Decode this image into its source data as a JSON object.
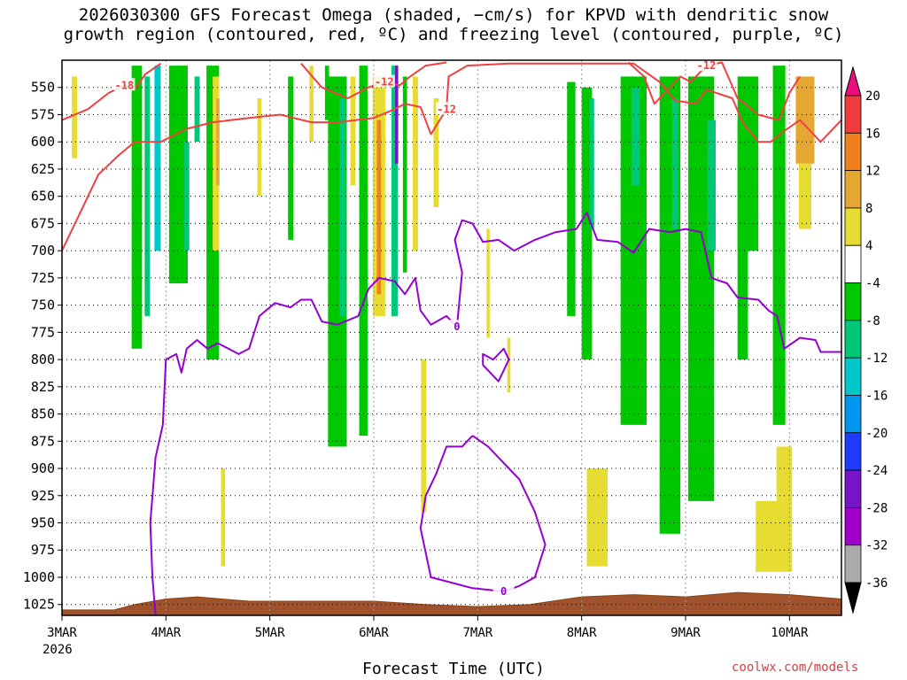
{
  "title_line1": "2026030300 GFS Forecast Omega (shaded, −cm/s) for KPVD with dendritic snow",
  "title_line2": "growth region (contoured, red, ºC) and freezing level (contoured, purple, ºC)",
  "credit": "coolwx.com/models",
  "chart_data": {
    "type": "heatmap",
    "title": "2026030300 GFS Forecast Omega (shaded, −cm/s) for KPVD with dendritic snow growth region (contoured, red, ºC) and freezing level (contoured, purple, ºC)",
    "xlabel": "Forecast Time (UTC)",
    "ylabel": "",
    "x_range_days": [
      0,
      7.5
    ],
    "y_range_hpa": [
      1035,
      525
    ],
    "y_inverted": true,
    "y_ticks": [
      550,
      575,
      600,
      625,
      650,
      675,
      700,
      725,
      750,
      775,
      800,
      825,
      850,
      875,
      900,
      925,
      950,
      975,
      1000,
      1025
    ],
    "x_ticks": [
      {
        "day": 0,
        "label": "3MAR"
      },
      {
        "day": 1,
        "label": "4MAR"
      },
      {
        "day": 2,
        "label": "5MAR"
      },
      {
        "day": 3,
        "label": "6MAR"
      },
      {
        "day": 4,
        "label": "7MAR"
      },
      {
        "day": 5,
        "label": "8MAR"
      },
      {
        "day": 6,
        "label": "9MAR"
      },
      {
        "day": 7,
        "label": "10MAR"
      }
    ],
    "x_year_label": "2026",
    "grid": true,
    "colorbar": {
      "labels": [
        "20",
        "16",
        "12",
        "8",
        "4",
        "-4",
        "-8",
        "-12",
        "-16",
        "-20",
        "-24",
        "-28",
        "-32",
        "-36"
      ],
      "bins": [
        {
          "range": [
            20,
            24
          ],
          "color": "#e8107a"
        },
        {
          "range": [
            16,
            20
          ],
          "color": "#f03c3c"
        },
        {
          "range": [
            12,
            16
          ],
          "color": "#f0801e"
        },
        {
          "range": [
            8,
            12
          ],
          "color": "#e4a832"
        },
        {
          "range": [
            4,
            8
          ],
          "color": "#e6dc32"
        },
        {
          "range": [
            -4,
            4
          ],
          "color": "#ffffff"
        },
        {
          "range": [
            -8,
            -4
          ],
          "color": "#00c800"
        },
        {
          "range": [
            -12,
            -8
          ],
          "color": "#00c878"
        },
        {
          "range": [
            -16,
            -12
          ],
          "color": "#00c8c8"
        },
        {
          "range": [
            -20,
            -16
          ],
          "color": "#0096f0"
        },
        {
          "range": [
            -24,
            -20
          ],
          "color": "#1e3cff"
        },
        {
          "range": [
            -28,
            -24
          ],
          "color": "#7814c8"
        },
        {
          "range": [
            -32,
            -28
          ],
          "color": "#a000c8"
        },
        {
          "range": [
            -36,
            -32
          ],
          "color": "#aaaaaa"
        },
        {
          "range": [
            -40,
            -36
          ],
          "color": "#000000"
        }
      ]
    },
    "omega_shading": [
      {
        "day": 0.12,
        "width": 0.05,
        "top": 540,
        "bottom": 615,
        "omega": 6
      },
      {
        "day": 0.72,
        "width": 0.1,
        "top": 530,
        "bottom": 790,
        "omega": -6
      },
      {
        "day": 0.82,
        "width": 0.05,
        "top": 540,
        "bottom": 760,
        "omega": -10
      },
      {
        "day": 0.92,
        "width": 0.06,
        "top": 530,
        "bottom": 700,
        "omega": -14
      },
      {
        "day": 1.12,
        "width": 0.18,
        "top": 530,
        "bottom": 730,
        "omega": -6
      },
      {
        "day": 1.2,
        "width": 0.05,
        "top": 600,
        "bottom": 700,
        "omega": -12
      },
      {
        "day": 1.3,
        "width": 0.05,
        "top": 540,
        "bottom": 600,
        "omega": -12
      },
      {
        "day": 1.45,
        "width": 0.12,
        "top": 530,
        "bottom": 800,
        "omega": -6
      },
      {
        "day": 1.48,
        "width": 0.06,
        "top": 540,
        "bottom": 700,
        "omega": 6
      },
      {
        "day": 1.5,
        "width": 0.03,
        "top": 560,
        "bottom": 640,
        "omega": 10
      },
      {
        "day": 1.55,
        "width": 0.04,
        "top": 900,
        "bottom": 990,
        "omega": 6
      },
      {
        "day": 1.9,
        "width": 0.04,
        "top": 560,
        "bottom": 650,
        "omega": 6
      },
      {
        "day": 2.2,
        "width": 0.05,
        "top": 540,
        "bottom": 690,
        "omega": -6
      },
      {
        "day": 2.4,
        "width": 0.04,
        "top": 530,
        "bottom": 600,
        "omega": 6
      },
      {
        "day": 2.55,
        "width": 0.04,
        "top": 530,
        "bottom": 580,
        "omega": -6
      },
      {
        "day": 2.65,
        "width": 0.18,
        "top": 540,
        "bottom": 880,
        "omega": -6
      },
      {
        "day": 2.7,
        "width": 0.06,
        "top": 560,
        "bottom": 760,
        "omega": -10
      },
      {
        "day": 2.8,
        "width": 0.05,
        "top": 540,
        "bottom": 640,
        "omega": 6
      },
      {
        "day": 2.9,
        "width": 0.08,
        "top": 530,
        "bottom": 870,
        "omega": -6
      },
      {
        "day": 3.05,
        "width": 0.12,
        "top": 540,
        "bottom": 760,
        "omega": 6
      },
      {
        "day": 3.05,
        "width": 0.04,
        "top": 580,
        "bottom": 740,
        "omega": 14
      },
      {
        "day": 3.2,
        "width": 0.06,
        "top": 530,
        "bottom": 760,
        "omega": -12
      },
      {
        "day": 3.22,
        "width": 0.03,
        "top": 530,
        "bottom": 620,
        "omega": -26
      },
      {
        "day": 3.3,
        "width": 0.04,
        "top": 540,
        "bottom": 720,
        "omega": -8
      },
      {
        "day": 3.4,
        "width": 0.05,
        "top": 540,
        "bottom": 700,
        "omega": 6
      },
      {
        "day": 3.48,
        "width": 0.05,
        "top": 800,
        "bottom": 940,
        "omega": 6
      },
      {
        "day": 3.6,
        "width": 0.05,
        "top": 560,
        "bottom": 660,
        "omega": 6
      },
      {
        "day": 4.1,
        "width": 0.03,
        "top": 680,
        "bottom": 780,
        "omega": 6
      },
      {
        "day": 4.3,
        "width": 0.03,
        "top": 780,
        "bottom": 830,
        "omega": 6
      },
      {
        "day": 4.9,
        "width": 0.08,
        "top": 545,
        "bottom": 760,
        "omega": -6
      },
      {
        "day": 5.05,
        "width": 0.1,
        "top": 550,
        "bottom": 800,
        "omega": -6
      },
      {
        "day": 5.1,
        "width": 0.04,
        "top": 560,
        "bottom": 680,
        "omega": -10
      },
      {
        "day": 5.15,
        "width": 0.2,
        "top": 900,
        "bottom": 990,
        "omega": 6
      },
      {
        "day": 5.5,
        "width": 0.25,
        "top": 540,
        "bottom": 860,
        "omega": -6
      },
      {
        "day": 5.52,
        "width": 0.08,
        "top": 550,
        "bottom": 640,
        "omega": -12
      },
      {
        "day": 5.85,
        "width": 0.2,
        "top": 540,
        "bottom": 960,
        "omega": -6
      },
      {
        "day": 5.9,
        "width": 0.06,
        "top": 560,
        "bottom": 680,
        "omega": -10
      },
      {
        "day": 6.15,
        "width": 0.25,
        "top": 540,
        "bottom": 930,
        "omega": -6
      },
      {
        "day": 6.25,
        "width": 0.08,
        "top": 580,
        "bottom": 700,
        "omega": -10
      },
      {
        "day": 6.55,
        "width": 0.1,
        "top": 580,
        "bottom": 800,
        "omega": -8
      },
      {
        "day": 6.6,
        "width": 0.2,
        "top": 540,
        "bottom": 700,
        "omega": -6
      },
      {
        "day": 6.9,
        "width": 0.12,
        "top": 530,
        "bottom": 860,
        "omega": -6
      },
      {
        "day": 7.15,
        "width": 0.18,
        "top": 540,
        "bottom": 620,
        "omega": 10
      },
      {
        "day": 7.15,
        "width": 0.12,
        "top": 620,
        "bottom": 680,
        "omega": 6
      },
      {
        "day": 6.85,
        "width": 0.35,
        "top": 930,
        "bottom": 995,
        "omega": 6
      },
      {
        "day": 6.95,
        "width": 0.15,
        "top": 880,
        "bottom": 930,
        "omega": 6
      }
    ],
    "dgz_contours_red": [
      {
        "label": "-18",
        "points": [
          [
            0,
            580
          ],
          [
            0.25,
            570
          ],
          [
            0.45,
            555
          ],
          [
            0.6,
            548
          ],
          [
            0.7,
            552
          ],
          [
            0.8,
            538
          ],
          [
            0.95,
            528
          ]
        ]
      },
      {
        "label": "-12",
        "points": [
          [
            0,
            700
          ],
          [
            0.15,
            670
          ],
          [
            0.35,
            630
          ],
          [
            0.55,
            612
          ],
          [
            0.7,
            600
          ],
          [
            0.95,
            600
          ],
          [
            1.2,
            588
          ],
          [
            1.45,
            582
          ],
          [
            1.8,
            578
          ],
          [
            2.1,
            575
          ],
          [
            2.4,
            582
          ],
          [
            2.65,
            582
          ],
          [
            3,
            578
          ],
          [
            3.2,
            570
          ],
          [
            3.3,
            565
          ],
          [
            3.45,
            568
          ],
          [
            3.55,
            593
          ],
          [
            3.7,
            570
          ],
          [
            3.72,
            540
          ],
          [
            3.9,
            530
          ],
          [
            4.3,
            528
          ],
          [
            5,
            528
          ],
          [
            5.5,
            528
          ],
          [
            5.75,
            545
          ],
          [
            5.9,
            562
          ],
          [
            6.1,
            565
          ],
          [
            6.2,
            552
          ],
          [
            6.45,
            560
          ],
          [
            6.55,
            582
          ],
          [
            6.7,
            600
          ],
          [
            6.82,
            600
          ],
          [
            6.95,
            590
          ],
          [
            7.1,
            580
          ],
          [
            7.3,
            600
          ],
          [
            7.5,
            580
          ]
        ]
      },
      {
        "label": "-12",
        "points": [
          [
            2.3,
            528
          ],
          [
            2.5,
            550
          ],
          [
            2.75,
            560
          ],
          [
            2.95,
            550
          ],
          [
            3.1,
            545
          ],
          [
            3.25,
            548
          ],
          [
            3.35,
            540
          ],
          [
            3.5,
            530
          ],
          [
            3.7,
            527
          ]
        ]
      },
      {
        "label": "-12",
        "points": [
          [
            5.45,
            527
          ],
          [
            5.6,
            540
          ],
          [
            5.7,
            565
          ],
          [
            5.8,
            555
          ],
          [
            5.95,
            540
          ],
          [
            6.05,
            545
          ],
          [
            6.2,
            530
          ],
          [
            6.35,
            527
          ],
          [
            6.5,
            560
          ],
          [
            6.7,
            575
          ],
          [
            6.9,
            580
          ],
          [
            7.0,
            555
          ],
          [
            7.1,
            540
          ]
        ]
      }
    ],
    "freezing_level_contours_purple": [
      {
        "label": "0",
        "points": [
          [
            0.9,
            1035
          ],
          [
            0.87,
            1000
          ],
          [
            0.85,
            950
          ],
          [
            0.9,
            890
          ],
          [
            0.97,
            860
          ],
          [
            1.0,
            800
          ],
          [
            1.1,
            795
          ],
          [
            1.15,
            812
          ],
          [
            1.2,
            790
          ],
          [
            1.3,
            782
          ],
          [
            1.4,
            790
          ],
          [
            1.5,
            785
          ],
          [
            1.7,
            795
          ],
          [
            1.8,
            790
          ],
          [
            1.9,
            760
          ],
          [
            2.05,
            748
          ],
          [
            2.2,
            752
          ],
          [
            2.3,
            745
          ],
          [
            2.4,
            745
          ],
          [
            2.5,
            765
          ],
          [
            2.65,
            768
          ],
          [
            2.85,
            760
          ],
          [
            2.95,
            735
          ],
          [
            3.05,
            725
          ],
          [
            3.2,
            728
          ],
          [
            3.3,
            740
          ],
          [
            3.4,
            725
          ],
          [
            3.45,
            755
          ],
          [
            3.55,
            768
          ],
          [
            3.7,
            760
          ],
          [
            3.8,
            770
          ],
          [
            3.85,
            720
          ],
          [
            3.78,
            690
          ],
          [
            3.85,
            672
          ],
          [
            3.95,
            675
          ],
          [
            4.05,
            692
          ],
          [
            4.2,
            690
          ],
          [
            4.35,
            700
          ],
          [
            4.55,
            690
          ],
          [
            4.75,
            683
          ],
          [
            4.95,
            680
          ],
          [
            5.05,
            665
          ],
          [
            5.15,
            690
          ],
          [
            5.35,
            692
          ],
          [
            5.5,
            702
          ],
          [
            5.65,
            680
          ],
          [
            5.85,
            683
          ],
          [
            6.0,
            680
          ],
          [
            6.15,
            683
          ],
          [
            6.25,
            725
          ],
          [
            6.4,
            730
          ],
          [
            6.5,
            743
          ],
          [
            6.7,
            745
          ],
          [
            6.8,
            755
          ],
          [
            6.88,
            760
          ],
          [
            6.95,
            790
          ],
          [
            7.1,
            780
          ],
          [
            7.25,
            782
          ],
          [
            7.3,
            793
          ],
          [
            7.5,
            793
          ]
        ]
      },
      {
        "label": "0",
        "points": [
          [
            3.95,
            870
          ],
          [
            3.85,
            880
          ],
          [
            3.7,
            880
          ],
          [
            3.6,
            905
          ],
          [
            3.5,
            925
          ],
          [
            3.45,
            955
          ],
          [
            3.55,
            1000
          ],
          [
            3.75,
            1005
          ],
          [
            3.95,
            1010
          ],
          [
            4.25,
            1013
          ],
          [
            4.4,
            1008
          ],
          [
            4.55,
            1000
          ],
          [
            4.65,
            970
          ],
          [
            4.55,
            940
          ],
          [
            4.4,
            910
          ],
          [
            4.3,
            900
          ],
          [
            4.1,
            880
          ],
          [
            3.95,
            870
          ]
        ]
      },
      {
        "label": "",
        "points": [
          [
            4.05,
            805
          ],
          [
            4.2,
            820
          ],
          [
            4.3,
            800
          ],
          [
            4.25,
            790
          ],
          [
            4.15,
            800
          ],
          [
            4.05,
            795
          ],
          [
            4.05,
            805
          ]
        ]
      }
    ],
    "surface_pressure_hpa": [
      [
        0,
        1030
      ],
      [
        0.5,
        1030
      ],
      [
        0.7,
        1025
      ],
      [
        1.0,
        1020
      ],
      [
        1.3,
        1018
      ],
      [
        1.8,
        1022
      ],
      [
        2.5,
        1022
      ],
      [
        3.0,
        1022
      ],
      [
        3.5,
        1025
      ],
      [
        4.0,
        1027
      ],
      [
        4.5,
        1025
      ],
      [
        5.0,
        1018
      ],
      [
        5.5,
        1016
      ],
      [
        6.0,
        1018
      ],
      [
        6.5,
        1014
      ],
      [
        7.0,
        1016
      ],
      [
        7.5,
        1020
      ]
    ]
  }
}
